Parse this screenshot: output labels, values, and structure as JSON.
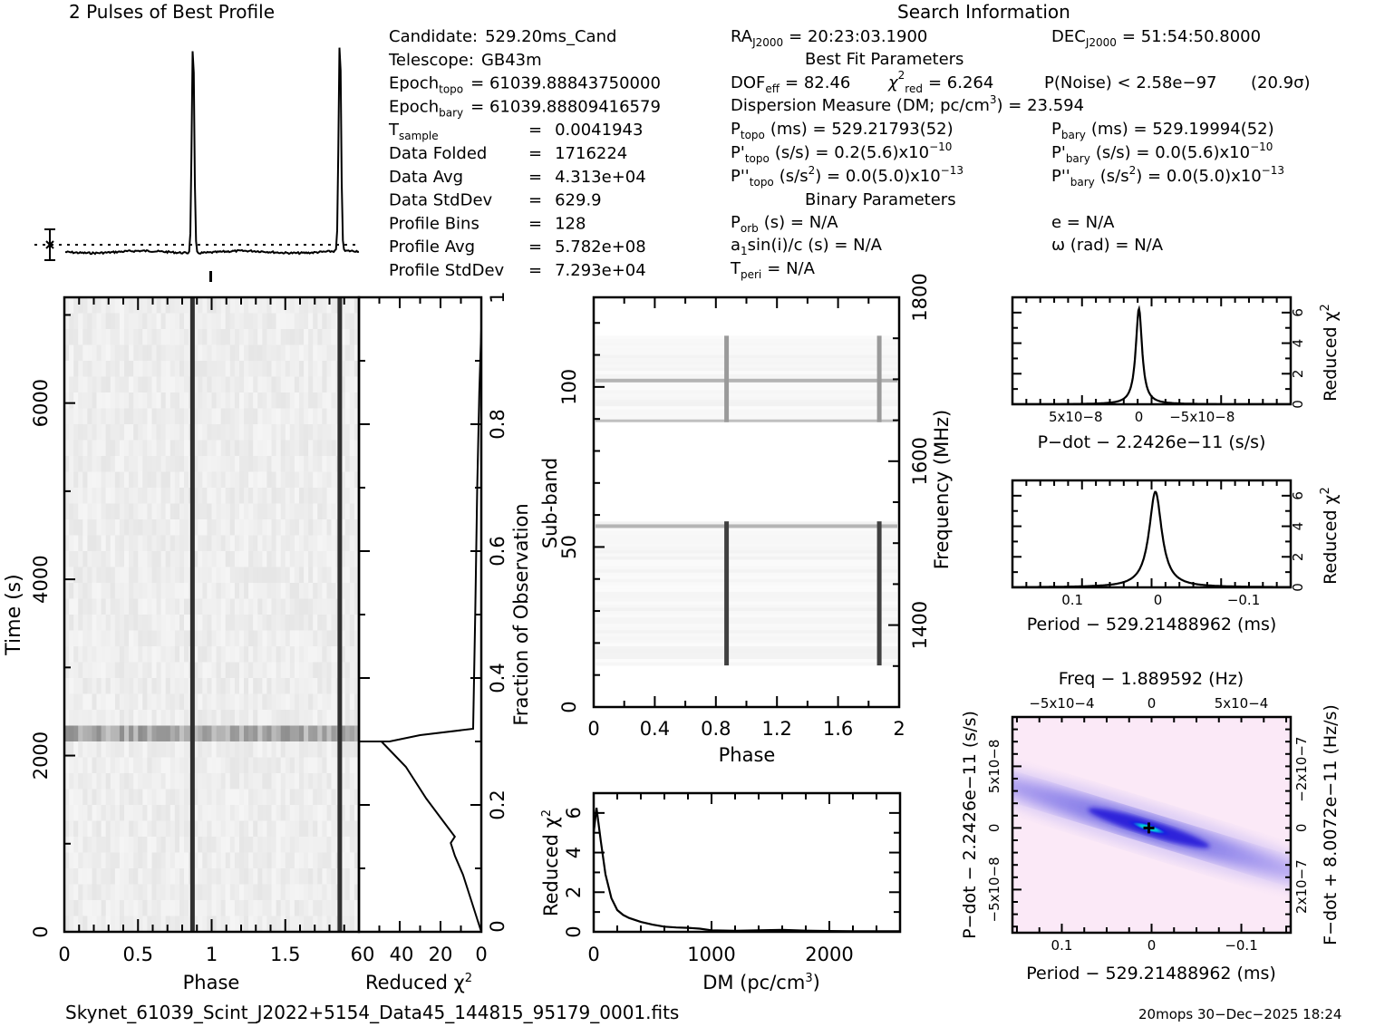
{
  "profile": {
    "title": "2 Pulses of Best Profile"
  },
  "info_left": {
    "rows": [
      {
        "label": "Candidate:",
        "value": "529.20ms_Cand"
      },
      {
        "label": "Telescope:",
        "value": "GB43m"
      },
      {
        "label": "Epoch",
        "sub": "topo",
        "value": "= 61039.88843750000"
      },
      {
        "label": "Epoch",
        "sub": "bary",
        "value": "= 61039.88809416579"
      },
      {
        "label": "T",
        "sub": "sample",
        "eq": "=",
        "value": "0.0041943"
      },
      {
        "label": "Data Folded",
        "eq": "=",
        "value": "1716224"
      },
      {
        "label": "Data Avg",
        "eq": "=",
        "value": "4.313e+04"
      },
      {
        "label": "Data StdDev",
        "eq": "=",
        "value": "629.9"
      },
      {
        "label": "Profile Bins",
        "eq": "=",
        "value": "128"
      },
      {
        "label": "Profile Avg",
        "eq": "=",
        "value": "5.782e+08"
      },
      {
        "label": "Profile StdDev",
        "eq": "=",
        "value": "7.293e+04"
      }
    ]
  },
  "search_info": {
    "title": "Search Information",
    "ra_label": "RA",
    "ra_sub": "J2000",
    "ra_value": "= 20:23:03.1900",
    "dec_label": "DEC",
    "dec_sub": "J2000",
    "dec_value": "= 51:54:50.8000",
    "best_fit_title": "Best Fit Parameters",
    "dof_label": "DOF",
    "dof_sub": "eff",
    "dof_value": "= 82.46",
    "chi_label": "χ",
    "chi_sup": "2",
    "chi_sub": "red",
    "chi_value": "= 6.264",
    "pnoise": "P(Noise) < 2.58e−97",
    "sigma": "(20.9σ)",
    "dm_text": "Dispersion Measure (DM; pc/cm",
    "dm_sup": "3",
    "dm_value": ") = 23.594",
    "ptopo_label": "P",
    "ptopo_sub": "topo",
    "ptopo_value": "(ms) =  529.21793(52)",
    "pbary_label": "P",
    "pbary_sub": "bary",
    "pbary_value": "(ms) =  529.19994(52)",
    "pdtopo_label": "P'",
    "pdtopo_sub": "topo",
    "pdtopo_value": "(s/s) =  0.2(5.6)x10",
    "pdtopo_exp": "−10",
    "pdbary_label": "P'",
    "pdbary_sub": "bary",
    "pdbary_value": "(s/s) = 0.0(5.6)x10",
    "pdbary_exp": "−10",
    "pddtopo_label": "P''",
    "pddtopo_sub": "topo",
    "pddtopo_value": "(s/s",
    "pddtopo_unit_sup": "2",
    "pddtopo_rest": ") = 0.0(5.0)x10",
    "pddtopo_exp": "−13",
    "pddbary_label": "P''",
    "pddbary_sub": "bary",
    "pddbary_value": "(s/s",
    "pddbary_unit_sup": "2",
    "pddbary_rest": ") = 0.0(5.0)x10",
    "pddbary_exp": "−13",
    "binary_title": "Binary Parameters",
    "porb_label": "P",
    "porb_sub": "orb",
    "porb_value": "(s) = N/A",
    "e_text": "e = N/A",
    "a1_label": "a",
    "a1_sub": "1",
    "a1_value": "sin(i)/c (s) = N/A",
    "omega_text": "ω (rad) = N/A",
    "tperi_label": "T",
    "tperi_sub": "peri",
    "tperi_value": "= N/A"
  },
  "footer": {
    "filename": "Skynet_61039_Scint_J2022+5154_Data45_144815_95179_0001.fits",
    "stamp": "20mops 30−Dec−2025 18:24"
  },
  "chart_data": [
    {
      "id": "profile",
      "type": "line",
      "title": "2 Pulses of Best Profile",
      "xlabel": "",
      "ylabel": "",
      "xlim": [
        0,
        2
      ],
      "peaks_phase": [
        0.87,
        1.87
      ],
      "baseline": 0.0,
      "peak_height": 1.0
    },
    {
      "id": "time_phase",
      "type": "heatmap",
      "xlabel": "Phase",
      "ylabel": "Time (s)",
      "xlim": [
        0,
        2
      ],
      "ylim": [
        0,
        7200
      ],
      "xticks": [
        "0",
        "0.5",
        "1",
        "1.5"
      ],
      "yticks": [
        "0",
        "2000",
        "4000",
        "6000"
      ],
      "pulse_phase": [
        0.87,
        1.87
      ],
      "bright_row_time": 2100
    },
    {
      "id": "chi_vs_time",
      "type": "line",
      "xlabel": "Reduced χ2",
      "ylabel": "Fraction of Observation",
      "xlim": [
        60,
        0
      ],
      "ylim": [
        0,
        1
      ],
      "xticks": [
        "60",
        "40",
        "20",
        "0"
      ],
      "yticks": [
        "0",
        "0.2",
        "0.4",
        "0.6",
        "0.8",
        "1"
      ],
      "x": [
        0,
        2,
        5,
        9,
        13,
        15,
        13,
        20,
        27,
        33,
        37,
        43,
        49,
        75,
        45,
        30,
        4,
        3,
        2,
        1,
        0,
        0
      ],
      "y": [
        0,
        0.02,
        0.05,
        0.09,
        0.12,
        0.14,
        0.15,
        0.18,
        0.21,
        0.24,
        0.26,
        0.28,
        0.3,
        0.3,
        0.3,
        0.31,
        0.32,
        0.5,
        0.7,
        0.85,
        0.95,
        1.0
      ]
    },
    {
      "id": "subband",
      "type": "heatmap",
      "xlabel": "Phase",
      "ylabel": "Sub-band",
      "y2label": "Frequency (MHz)",
      "xlim": [
        0,
        2
      ],
      "ylim": [
        0,
        128
      ],
      "xticks": [
        "0",
        "0.4",
        "0.8",
        "1.2",
        "1.6",
        "2"
      ],
      "yticks": [
        "0",
        "50",
        "100"
      ],
      "y2ticks": [
        "1400",
        "1600",
        "1800"
      ],
      "y2lim": [
        1300,
        1800
      ],
      "pulse_phase": [
        0.87,
        1.87
      ],
      "band_ranges": [
        [
          13,
          58
        ],
        [
          89,
          116
        ]
      ]
    },
    {
      "id": "dm_curve",
      "type": "line",
      "xlabel": "DM (pc/cm3)",
      "ylabel": "Reduced χ2",
      "xlim": [
        0,
        2600
      ],
      "ylim": [
        0,
        7
      ],
      "xticks": [
        "0",
        "1000",
        "2000"
      ],
      "yticks": [
        "0",
        "2",
        "4",
        "6"
      ],
      "x": [
        0,
        23.6,
        60,
        100,
        150,
        200,
        250,
        300,
        400,
        500,
        600,
        700,
        800,
        900,
        1000,
        1200,
        1400,
        1600,
        1800,
        2000,
        2200,
        2400,
        2600
      ],
      "y": [
        5.0,
        6.26,
        4.6,
        2.9,
        1.7,
        1.1,
        0.85,
        0.7,
        0.5,
        0.36,
        0.26,
        0.22,
        0.2,
        0.16,
        0.08,
        0.05,
        0.08,
        0.1,
        0.06,
        0.04,
        0.03,
        0.03,
        0.03
      ]
    },
    {
      "id": "pdot_curve",
      "type": "line",
      "xlabel": "P−dot − 2.2426e−11 (s/s)",
      "ylabel": "Reduced χ2",
      "xlim": [
        1e-07,
        -1.2e-07
      ],
      "ylim": [
        0,
        7
      ],
      "xticks": [
        "5x10−8",
        "0",
        "−5x10−8"
      ],
      "yticks": [
        "0",
        "2",
        "4",
        "6"
      ],
      "peak_x": 0,
      "peak_y": 6.26,
      "halfwidth": 3e-09
    },
    {
      "id": "period_curve",
      "type": "line",
      "xlabel": "Period − 529.21488962 (ms)",
      "ylabel": "Reduced χ2",
      "xlim": [
        0.17,
        -0.155
      ],
      "ylim": [
        0,
        7
      ],
      "xticks": [
        "0.1",
        "0",
        "−0.1"
      ],
      "yticks": [
        "0",
        "2",
        "4",
        "6"
      ],
      "peak_x": 0.003,
      "peak_y": 6.26,
      "halfwidth": 0.009
    },
    {
      "id": "p_pdot_map",
      "type": "heatmap",
      "title": "Freq − 1.889592 (Hz)",
      "xlabel": "Period − 529.21488962 (ms)",
      "ylabel": "P−dot − 2.2426e−11 (s/s)",
      "y2label": "F−dot + 8.0072e−11 (Hz/s)",
      "xlim": [
        0.155,
        -0.155
      ],
      "ylim": [
        9e-08,
        -8.5e-08
      ],
      "xticks": [
        "0.1",
        "0",
        "−0.1"
      ],
      "x2ticks": [
        "−5x10−4",
        "0",
        "5x10−4"
      ],
      "yticks": [
        "5x10−8",
        "0",
        "−5x10−8"
      ],
      "y2ticks": [
        "−2x10−7",
        "0",
        "2x10−7"
      ],
      "best_fit": [
        0.003,
        0
      ],
      "colors": {
        "low": "#fbe9f7",
        "mid": "#4030e0",
        "high": "#00e080"
      }
    }
  ]
}
